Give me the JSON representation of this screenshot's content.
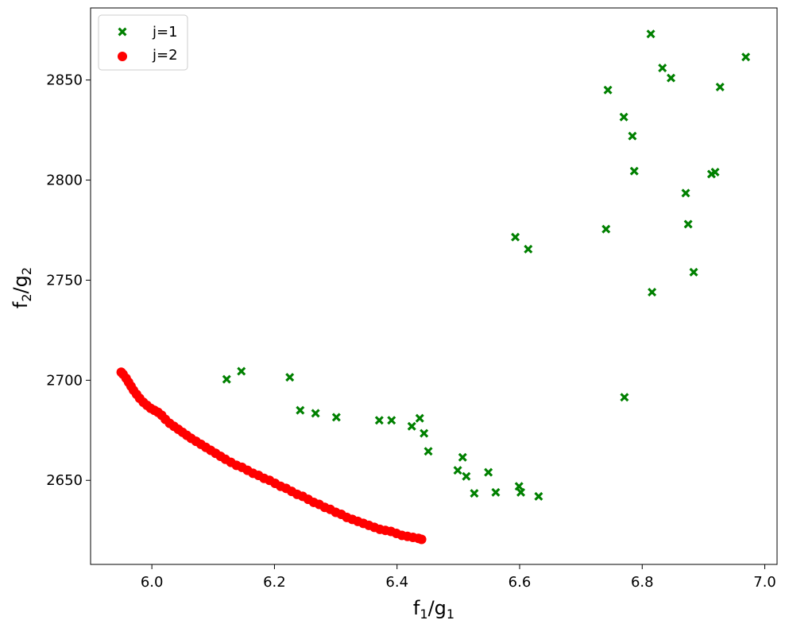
{
  "chart_data": {
    "type": "scatter",
    "xlabel": "f1/g1",
    "ylabel": "f2/g2",
    "xlim": [
      5.9,
      7.02
    ],
    "ylim": [
      2608,
      2886
    ],
    "xticks": [
      "6.0",
      "6.2",
      "6.4",
      "6.6",
      "6.8",
      "7.0"
    ],
    "yticks": [
      "2650",
      "2700",
      "2750",
      "2800",
      "2850"
    ],
    "grid": false,
    "legend_position": "top-left",
    "colors": {
      "j1": "#008000",
      "j2": "#ff0000"
    },
    "series": [
      {
        "name": "j=1",
        "marker": "filled-x",
        "points": [
          [
            6.122,
            2700.5
          ],
          [
            6.146,
            2704.5
          ],
          [
            6.225,
            2701.5
          ],
          [
            6.242,
            2685.0
          ],
          [
            6.267,
            2683.5
          ],
          [
            6.301,
            2681.5
          ],
          [
            6.371,
            2680.0
          ],
          [
            6.391,
            2680.0
          ],
          [
            6.424,
            2677.0
          ],
          [
            6.437,
            2681.0
          ],
          [
            6.444,
            2673.5
          ],
          [
            6.451,
            2664.5
          ],
          [
            6.499,
            2655.0
          ],
          [
            6.507,
            2661.5
          ],
          [
            6.513,
            2652.0
          ],
          [
            6.526,
            2643.5
          ],
          [
            6.549,
            2654.0
          ],
          [
            6.561,
            2644.0
          ],
          [
            6.599,
            2647.0
          ],
          [
            6.602,
            2644.0
          ],
          [
            6.631,
            2642.0
          ],
          [
            6.593,
            2771.5
          ],
          [
            6.614,
            2765.5
          ],
          [
            6.741,
            2775.5
          ],
          [
            6.744,
            2845.0
          ],
          [
            6.77,
            2831.5
          ],
          [
            6.771,
            2691.5
          ],
          [
            6.784,
            2822.0
          ],
          [
            6.787,
            2804.5
          ],
          [
            6.814,
            2873.0
          ],
          [
            6.816,
            2744.0
          ],
          [
            6.833,
            2856.0
          ],
          [
            6.847,
            2851.0
          ],
          [
            6.871,
            2793.5
          ],
          [
            6.875,
            2778.0
          ],
          [
            6.884,
            2754.0
          ],
          [
            6.913,
            2803.0
          ],
          [
            6.919,
            2804.0
          ],
          [
            6.927,
            2846.5
          ],
          [
            6.969,
            2861.5
          ]
        ]
      },
      {
        "name": "j=2",
        "marker": "circle",
        "points": [
          [
            5.95,
            2704.0
          ],
          [
            5.953,
            2703.0
          ],
          [
            5.958,
            2701.0
          ],
          [
            5.962,
            2699.0
          ],
          [
            5.966,
            2697.0
          ],
          [
            5.97,
            2695.0
          ],
          [
            5.975,
            2693.0
          ],
          [
            5.98,
            2691.0
          ],
          [
            5.986,
            2689.0
          ],
          [
            5.992,
            2687.5
          ],
          [
            5.998,
            2686.0
          ],
          [
            6.004,
            2685.0
          ],
          [
            6.01,
            2684.0
          ],
          [
            6.016,
            2682.5
          ],
          [
            6.022,
            2680.5
          ],
          [
            6.029,
            2678.5
          ],
          [
            6.036,
            2677.0
          ],
          [
            6.043,
            2675.5
          ],
          [
            6.05,
            2674.0
          ],
          [
            6.057,
            2672.5
          ],
          [
            6.064,
            2671.0
          ],
          [
            6.072,
            2669.5
          ],
          [
            6.08,
            2668.0
          ],
          [
            6.088,
            2666.5
          ],
          [
            6.096,
            2665.0
          ],
          [
            6.104,
            2663.5
          ],
          [
            6.112,
            2662.0
          ],
          [
            6.12,
            2660.5
          ],
          [
            6.129,
            2659.0
          ],
          [
            6.138,
            2657.5
          ],
          [
            6.147,
            2656.5
          ],
          [
            6.156,
            2655.0
          ],
          [
            6.165,
            2653.5
          ],
          [
            6.174,
            2652.5
          ],
          [
            6.183,
            2651.0
          ],
          [
            6.192,
            2650.0
          ],
          [
            6.201,
            2648.5
          ],
          [
            6.21,
            2647.0
          ],
          [
            6.219,
            2646.0
          ],
          [
            6.228,
            2644.5
          ],
          [
            6.237,
            2643.0
          ],
          [
            6.246,
            2642.0
          ],
          [
            6.255,
            2640.5
          ],
          [
            6.264,
            2639.0
          ],
          [
            6.273,
            2638.0
          ],
          [
            6.282,
            2636.5
          ],
          [
            6.291,
            2635.5
          ],
          [
            6.3,
            2634.0
          ],
          [
            6.309,
            2633.0
          ],
          [
            6.318,
            2631.5
          ],
          [
            6.327,
            2630.5
          ],
          [
            6.336,
            2629.5
          ],
          [
            6.345,
            2628.5
          ],
          [
            6.354,
            2627.5
          ],
          [
            6.363,
            2626.5
          ],
          [
            6.372,
            2625.5
          ],
          [
            6.381,
            2625.0
          ],
          [
            6.39,
            2624.5
          ],
          [
            6.399,
            2623.5
          ],
          [
            6.408,
            2622.5
          ],
          [
            6.417,
            2622.0
          ],
          [
            6.426,
            2621.5
          ],
          [
            6.435,
            2621.0
          ],
          [
            6.44,
            2620.5
          ]
        ]
      }
    ]
  }
}
